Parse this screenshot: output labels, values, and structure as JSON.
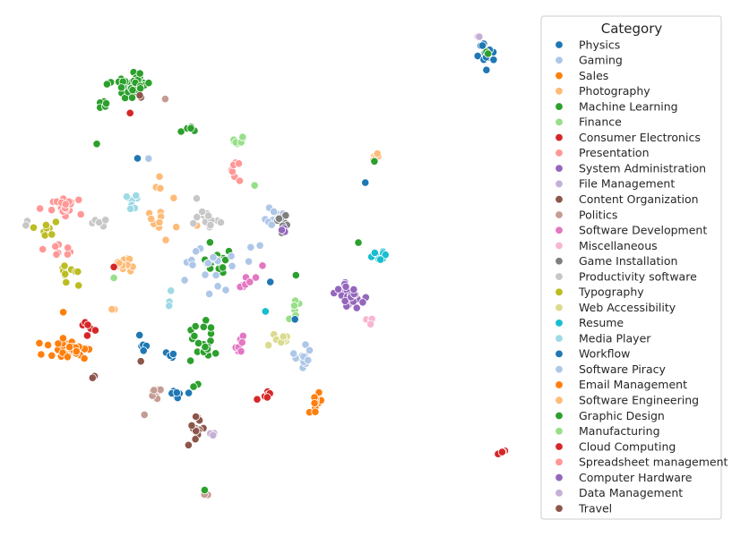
{
  "chart_data": {
    "type": "scatter",
    "title": "",
    "xlabel": "",
    "ylabel": "",
    "axes_visible": false,
    "grid": false,
    "legend_placement": "right",
    "legend": {
      "title": "Category",
      "entries": [
        {
          "name": "Physics",
          "color": "#1f77b4"
        },
        {
          "name": "Gaming",
          "color": "#aec7e8"
        },
        {
          "name": "Sales",
          "color": "#ff7f0e"
        },
        {
          "name": "Photography",
          "color": "#ffbb78"
        },
        {
          "name": "Machine Learning",
          "color": "#2ca02c"
        },
        {
          "name": "Finance",
          "color": "#98df8a"
        },
        {
          "name": "Consumer Electronics",
          "color": "#d62728"
        },
        {
          "name": "Presentation",
          "color": "#ff9896"
        },
        {
          "name": "System Administration",
          "color": "#9467bd"
        },
        {
          "name": "File Management",
          "color": "#c5b0d5"
        },
        {
          "name": "Content Organization",
          "color": "#8c564b"
        },
        {
          "name": "Politics",
          "color": "#c49c94"
        },
        {
          "name": "Software Development",
          "color": "#e377c2"
        },
        {
          "name": "Miscellaneous",
          "color": "#f7b6d2"
        },
        {
          "name": "Game Installation",
          "color": "#7f7f7f"
        },
        {
          "name": "Productivity software",
          "color": "#c7c7c7"
        },
        {
          "name": "Typography",
          "color": "#bcbd22"
        },
        {
          "name": "Web Accessibility",
          "color": "#dbdb8d"
        },
        {
          "name": "Resume",
          "color": "#17becf"
        },
        {
          "name": "Media Player",
          "color": "#9edae5"
        },
        {
          "name": "Workflow",
          "color": "#1f77b4"
        },
        {
          "name": "Software Piracy",
          "color": "#aec7e8"
        },
        {
          "name": "Email Management",
          "color": "#ff7f0e"
        },
        {
          "name": "Software Engineering",
          "color": "#ffbb78"
        },
        {
          "name": "Graphic Design",
          "color": "#2ca02c"
        },
        {
          "name": "Manufacturing",
          "color": "#98df8a"
        },
        {
          "name": "Cloud Computing",
          "color": "#d62728"
        },
        {
          "name": "Spreadsheet management",
          "color": "#ff9896"
        },
        {
          "name": "Computer Hardware",
          "color": "#9467bd"
        },
        {
          "name": "Data Management",
          "color": "#c5b0d5"
        },
        {
          "name": "Travel",
          "color": "#8c564b"
        }
      ]
    },
    "xlim": [
      0,
      560
    ],
    "ylim": [
      0,
      560
    ],
    "clusters": [
      {
        "color": "#2ca02c",
        "cx": 145,
        "cy": 97,
        "sx": 20,
        "sy": 14,
        "n": 40
      },
      {
        "color": "#2ca02c",
        "cx": 112,
        "cy": 118,
        "sx": 6,
        "sy": 4,
        "n": 4
      },
      {
        "color": "#2ca02c",
        "cx": 210,
        "cy": 145,
        "sx": 6,
        "sy": 5,
        "n": 5
      },
      {
        "color": "#8c564b",
        "cx": 155,
        "cy": 110,
        "sx": 4,
        "sy": 4,
        "n": 2
      },
      {
        "color": "#d62728",
        "cx": 146,
        "cy": 125,
        "sx": 3,
        "sy": 3,
        "n": 1
      },
      {
        "color": "#c49c94",
        "cx": 185,
        "cy": 110,
        "sx": 2,
        "sy": 2,
        "n": 1
      },
      {
        "color": "#1f77b4",
        "cx": 543,
        "cy": 60,
        "sx": 7,
        "sy": 12,
        "n": 12
      },
      {
        "color": "#c5b0d5",
        "cx": 535,
        "cy": 40,
        "sx": 4,
        "sy": 4,
        "n": 3
      },
      {
        "color": "#2ca02c",
        "cx": 541,
        "cy": 57,
        "sx": 3,
        "sy": 3,
        "n": 2
      },
      {
        "color": "#98df8a",
        "cx": 266,
        "cy": 158,
        "sx": 7,
        "sy": 6,
        "n": 7
      },
      {
        "color": "#ff9896",
        "cx": 262,
        "cy": 190,
        "sx": 7,
        "sy": 18,
        "n": 8
      },
      {
        "color": "#98df8a",
        "cx": 283,
        "cy": 207,
        "sx": 3,
        "sy": 3,
        "n": 1
      },
      {
        "color": "#ffbb78",
        "cx": 421,
        "cy": 175,
        "sx": 6,
        "sy": 5,
        "n": 6
      },
      {
        "color": "#2ca02c",
        "cx": 418,
        "cy": 180,
        "sx": 2,
        "sy": 2,
        "n": 1
      },
      {
        "color": "#1f77b4",
        "cx": 409,
        "cy": 204,
        "sx": 2,
        "sy": 2,
        "n": 1
      },
      {
        "color": "#ff9896",
        "cx": 68,
        "cy": 232,
        "sx": 18,
        "sy": 8,
        "n": 22
      },
      {
        "color": "#c7c7c7",
        "cx": 110,
        "cy": 248,
        "sx": 10,
        "sy": 5,
        "n": 6
      },
      {
        "color": "#bcbd22",
        "cx": 52,
        "cy": 255,
        "sx": 10,
        "sy": 10,
        "n": 8
      },
      {
        "color": "#9edae5",
        "cx": 148,
        "cy": 228,
        "sx": 9,
        "sy": 11,
        "n": 9
      },
      {
        "color": "#ffbb78",
        "cx": 185,
        "cy": 245,
        "sx": 18,
        "sy": 15,
        "n": 12
      },
      {
        "color": "#c7c7c7",
        "cx": 232,
        "cy": 245,
        "sx": 18,
        "sy": 15,
        "n": 14
      },
      {
        "color": "#ff9896",
        "cx": 68,
        "cy": 280,
        "sx": 12,
        "sy": 6,
        "n": 8
      },
      {
        "color": "#bcbd22",
        "cx": 75,
        "cy": 310,
        "sx": 14,
        "sy": 14,
        "n": 10
      },
      {
        "color": "#ffbb78",
        "cx": 138,
        "cy": 295,
        "sx": 10,
        "sy": 10,
        "n": 14
      },
      {
        "color": "#98df8a",
        "cx": 128,
        "cy": 312,
        "sx": 2,
        "sy": 2,
        "n": 1
      },
      {
        "color": "#ffbb78",
        "cx": 127,
        "cy": 345,
        "sx": 4,
        "sy": 6,
        "n": 2
      },
      {
        "color": "#aec7e8",
        "cx": 305,
        "cy": 245,
        "sx": 10,
        "sy": 10,
        "n": 8
      },
      {
        "color": "#7f7f7f",
        "cx": 315,
        "cy": 244,
        "sx": 6,
        "sy": 10,
        "n": 12
      },
      {
        "color": "#9467bd",
        "cx": 318,
        "cy": 258,
        "sx": 3,
        "sy": 3,
        "n": 3
      },
      {
        "color": "#17becf",
        "cx": 425,
        "cy": 285,
        "sx": 8,
        "sy": 6,
        "n": 10
      },
      {
        "color": "#2ca02c",
        "cx": 403,
        "cy": 271,
        "sx": 2,
        "sy": 2,
        "n": 1
      },
      {
        "color": "#2ca02c",
        "cx": 245,
        "cy": 290,
        "sx": 12,
        "sy": 14,
        "n": 14
      },
      {
        "color": "#aec7e8",
        "cx": 240,
        "cy": 300,
        "sx": 40,
        "sy": 25,
        "n": 22
      },
      {
        "color": "#e377c2",
        "cx": 275,
        "cy": 315,
        "sx": 8,
        "sy": 8,
        "n": 7
      },
      {
        "color": "#9467bd",
        "cx": 390,
        "cy": 330,
        "sx": 12,
        "sy": 12,
        "n": 24
      },
      {
        "color": "#f7b6d2",
        "cx": 415,
        "cy": 358,
        "sx": 4,
        "sy": 6,
        "n": 4
      },
      {
        "color": "#ff7f0e",
        "cx": 78,
        "cy": 390,
        "sx": 22,
        "sy": 13,
        "n": 36
      },
      {
        "color": "#d62728",
        "cx": 100,
        "cy": 370,
        "sx": 8,
        "sy": 10,
        "n": 6
      },
      {
        "color": "#ff7f0e",
        "cx": 68,
        "cy": 348,
        "sx": 4,
        "sy": 4,
        "n": 1
      },
      {
        "color": "#8c564b",
        "cx": 103,
        "cy": 420,
        "sx": 4,
        "sy": 2,
        "n": 2
      },
      {
        "color": "#1f77b4",
        "cx": 160,
        "cy": 385,
        "sx": 10,
        "sy": 10,
        "n": 6
      },
      {
        "color": "#1f77b4",
        "cx": 190,
        "cy": 395,
        "sx": 8,
        "sy": 4,
        "n": 5
      },
      {
        "color": "#2ca02c",
        "cx": 225,
        "cy": 390,
        "sx": 14,
        "sy": 25,
        "n": 22
      },
      {
        "color": "#c49c94",
        "cx": 175,
        "cy": 440,
        "sx": 7,
        "sy": 8,
        "n": 12
      },
      {
        "color": "#1f77b4",
        "cx": 205,
        "cy": 440,
        "sx": 14,
        "sy": 4,
        "n": 7
      },
      {
        "color": "#e377c2",
        "cx": 270,
        "cy": 385,
        "sx": 7,
        "sy": 12,
        "n": 8
      },
      {
        "color": "#dbdb8d",
        "cx": 315,
        "cy": 380,
        "sx": 10,
        "sy": 6,
        "n": 8
      },
      {
        "color": "#aec7e8",
        "cx": 338,
        "cy": 395,
        "sx": 10,
        "sy": 12,
        "n": 12
      },
      {
        "color": "#98df8a",
        "cx": 330,
        "cy": 340,
        "sx": 8,
        "sy": 15,
        "n": 6
      },
      {
        "color": "#ff7f0e",
        "cx": 352,
        "cy": 447,
        "sx": 6,
        "sy": 12,
        "n": 12
      },
      {
        "color": "#d62728",
        "cx": 300,
        "cy": 443,
        "sx": 8,
        "sy": 5,
        "n": 9
      },
      {
        "color": "#1f77b4",
        "cx": 332,
        "cy": 358,
        "sx": 10,
        "sy": 2,
        "n": 2
      },
      {
        "color": "#8c564b",
        "cx": 218,
        "cy": 480,
        "sx": 9,
        "sy": 13,
        "n": 14
      },
      {
        "color": "#c5b0d5",
        "cx": 237,
        "cy": 487,
        "sx": 3,
        "sy": 4,
        "n": 3
      },
      {
        "color": "#c49c94",
        "cx": 230,
        "cy": 553,
        "sx": 3,
        "sy": 4,
        "n": 3
      },
      {
        "color": "#2ca02c",
        "cx": 228,
        "cy": 549,
        "sx": 2,
        "sy": 2,
        "n": 1
      },
      {
        "color": "#d62728",
        "cx": 563,
        "cy": 505,
        "sx": 5,
        "sy": 5,
        "n": 5
      },
      {
        "color": "#c7c7c7",
        "cx": 30,
        "cy": 250,
        "sx": 3,
        "sy": 3,
        "n": 2
      },
      {
        "color": "#2ca02c",
        "cx": 108,
        "cy": 162,
        "sx": 2,
        "sy": 2,
        "n": 1
      },
      {
        "color": "#1f77b4",
        "cx": 152,
        "cy": 177,
        "sx": 2,
        "sy": 2,
        "n": 1
      },
      {
        "color": "#aec7e8",
        "cx": 168,
        "cy": 175,
        "sx": 2,
        "sy": 2,
        "n": 1
      },
      {
        "color": "#ffbb78",
        "cx": 175,
        "cy": 200,
        "sx": 5,
        "sy": 10,
        "n": 3
      },
      {
        "color": "#9edae5",
        "cx": 187,
        "cy": 330,
        "sx": 6,
        "sy": 20,
        "n": 3
      },
      {
        "color": "#2ca02c",
        "cx": 332,
        "cy": 308,
        "sx": 2,
        "sy": 2,
        "n": 1
      },
      {
        "color": "#e377c2",
        "cx": 293,
        "cy": 297,
        "sx": 2,
        "sy": 2,
        "n": 1
      },
      {
        "color": "#17becf",
        "cx": 297,
        "cy": 349,
        "sx": 2,
        "sy": 2,
        "n": 1
      },
      {
        "color": "#1f77b4",
        "cx": 302,
        "cy": 315,
        "sx": 2,
        "sy": 2,
        "n": 1
      },
      {
        "color": "#d62728",
        "cx": 128,
        "cy": 300,
        "sx": 2,
        "sy": 2,
        "n": 1
      },
      {
        "color": "#8c564b",
        "cx": 158,
        "cy": 405,
        "sx": 2,
        "sy": 2,
        "n": 1
      },
      {
        "color": "#c49c94",
        "cx": 162,
        "cy": 462,
        "sx": 2,
        "sy": 2,
        "n": 1
      }
    ]
  }
}
